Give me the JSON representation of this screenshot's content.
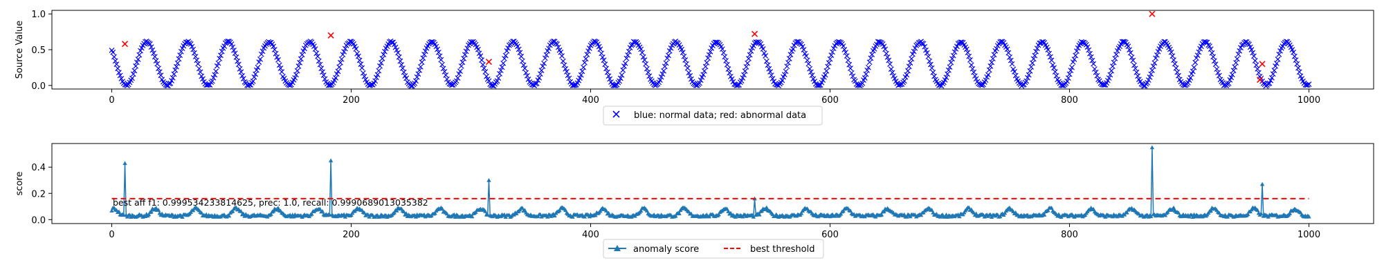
{
  "chart_data": [
    {
      "type": "scatter",
      "ylabel": "Source Value",
      "xlim": [
        -50,
        1054
      ],
      "ylim": [
        -0.05,
        1.05
      ],
      "x_ticks": [
        0,
        200,
        400,
        600,
        800,
        1000
      ],
      "y_ticks": [
        0.0,
        0.5,
        1.0
      ],
      "legend": "bottom-center",
      "legend_labels": [
        "blue: normal data; red: abnormal data"
      ],
      "normal_series": {
        "marker": "x",
        "color": "#0000ff",
        "n_points": 1001,
        "shape": "sinusoid",
        "period": 34,
        "amplitude": 0.305,
        "offset": 0.305,
        "phase_deg": 140
      },
      "abnormal_points": [
        {
          "x": 11,
          "y": 0.58
        },
        {
          "x": 183,
          "y": 0.7
        },
        {
          "x": 315,
          "y": 0.33
        },
        {
          "x": 537,
          "y": 0.72
        },
        {
          "x": 869,
          "y": 1.0
        },
        {
          "x": 961,
          "y": 0.3
        },
        {
          "x": 959,
          "y": 0.08
        }
      ],
      "abnormal_color": "#ff0000"
    },
    {
      "type": "line",
      "ylabel": "score",
      "xlim": [
        -50,
        1054
      ],
      "ylim": [
        -0.03,
        0.58
      ],
      "x_ticks": [
        0,
        200,
        400,
        600,
        800,
        1000
      ],
      "y_ticks": [
        0.0,
        0.2,
        0.4
      ],
      "legend": "bottom-center",
      "legend_labels": [
        "anomaly score",
        "best threshold"
      ],
      "annotation": "best aff f1: 0.999534233814625, prec: 1.0, recall: 0.9990689013035382",
      "series": [
        {
          "name": "anomaly score",
          "color": "#1f77b4",
          "marker": "triangle-up",
          "n_points": 1001,
          "base_level": 0.03,
          "bump_period": 34,
          "bump_height": 0.055,
          "spikes": [
            {
              "x": 11,
              "y": 0.43
            },
            {
              "x": 183,
              "y": 0.45
            },
            {
              "x": 315,
              "y": 0.3
            },
            {
              "x": 537,
              "y": 0.16
            },
            {
              "x": 869,
              "y": 0.55
            },
            {
              "x": 961,
              "y": 0.27
            }
          ]
        },
        {
          "name": "best threshold",
          "color": "#ff0000",
          "style": "dashed",
          "y": 0.16,
          "x_range": [
            0,
            1000
          ]
        }
      ]
    }
  ]
}
